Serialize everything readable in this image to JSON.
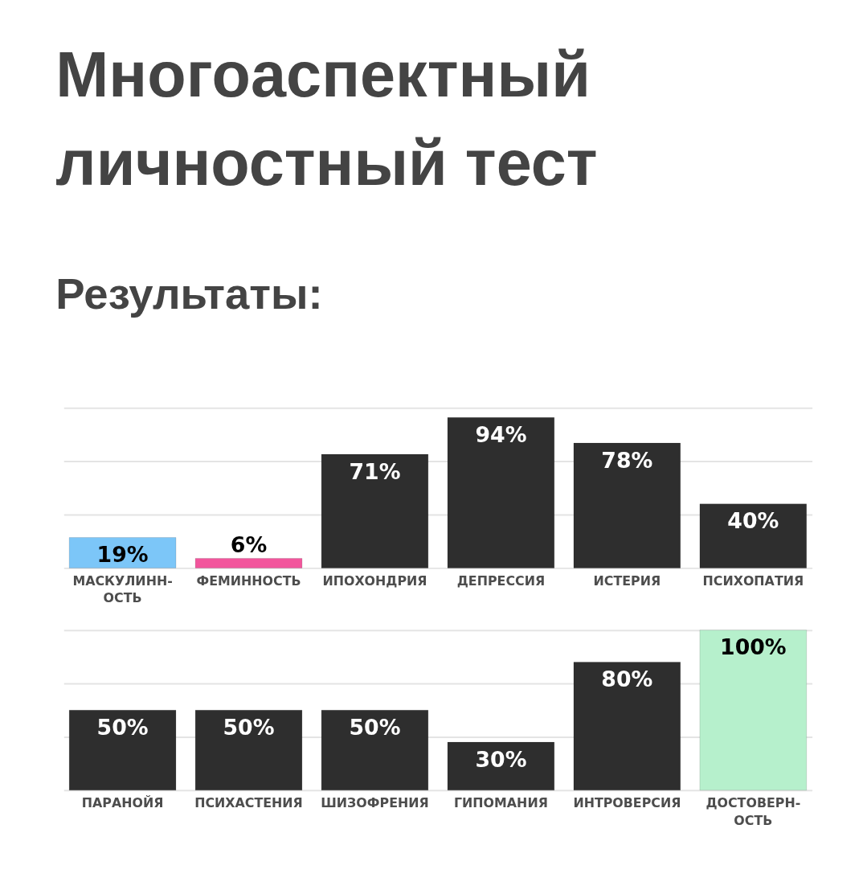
{
  "chart_data": [
    {
      "type": "bar",
      "title": "Многоаспектный личностный тест",
      "subtitle": "Результаты:",
      "categories": [
        "МАСКУЛИНН-ОСТЬ",
        "ФЕМИННОСТЬ",
        "ИПОХОНДРИЯ",
        "ДЕПРЕССИЯ",
        "ИСТЕРИЯ",
        "ПСИХОПАТИЯ"
      ],
      "values": [
        19,
        6,
        71,
        94,
        78,
        40
      ],
      "value_labels": [
        "19%",
        "6%",
        "71%",
        "94%",
        "78%",
        "40%"
      ],
      "colors": [
        "#7cc6f8",
        "#f2559c",
        "#2e2e2e",
        "#2e2e2e",
        "#2e2e2e",
        "#2e2e2e"
      ],
      "ylim": [
        0,
        100
      ],
      "yticks": [
        {
          "value": 0,
          "label": null
        },
        {
          "value": 33.3,
          "label": null
        },
        {
          "value": 66.7,
          "label": null
        },
        {
          "value": 100,
          "label": null
        }
      ],
      "grid": "y",
      "tick_labels": "x"
    },
    {
      "type": "bar",
      "categories": [
        "ПАРАНОЙЯ",
        "ПСИХАСТЕНИЯ",
        "ШИЗОФРЕНИЯ",
        "ГИПОМАНИЯ",
        "ИНТРОВЕРСИЯ",
        "ДОСТОВЕРН-ОСТЬ"
      ],
      "values": [
        50,
        50,
        50,
        30,
        80,
        100
      ],
      "value_labels": [
        "50%",
        "50%",
        "50%",
        "30%",
        "80%",
        "100%"
      ],
      "colors": [
        "#2e2e2e",
        "#2e2e2e",
        "#2e2e2e",
        "#2e2e2e",
        "#2e2e2e",
        "#b6f0cc"
      ],
      "ylim": [
        0,
        100
      ],
      "yticks": [
        {
          "value": 0,
          "label": null
        },
        {
          "value": 33.3,
          "label": null
        },
        {
          "value": 66.7,
          "label": null
        },
        {
          "value": 100,
          "label": null
        }
      ],
      "grid": "y",
      "tick_labels": "x"
    }
  ]
}
